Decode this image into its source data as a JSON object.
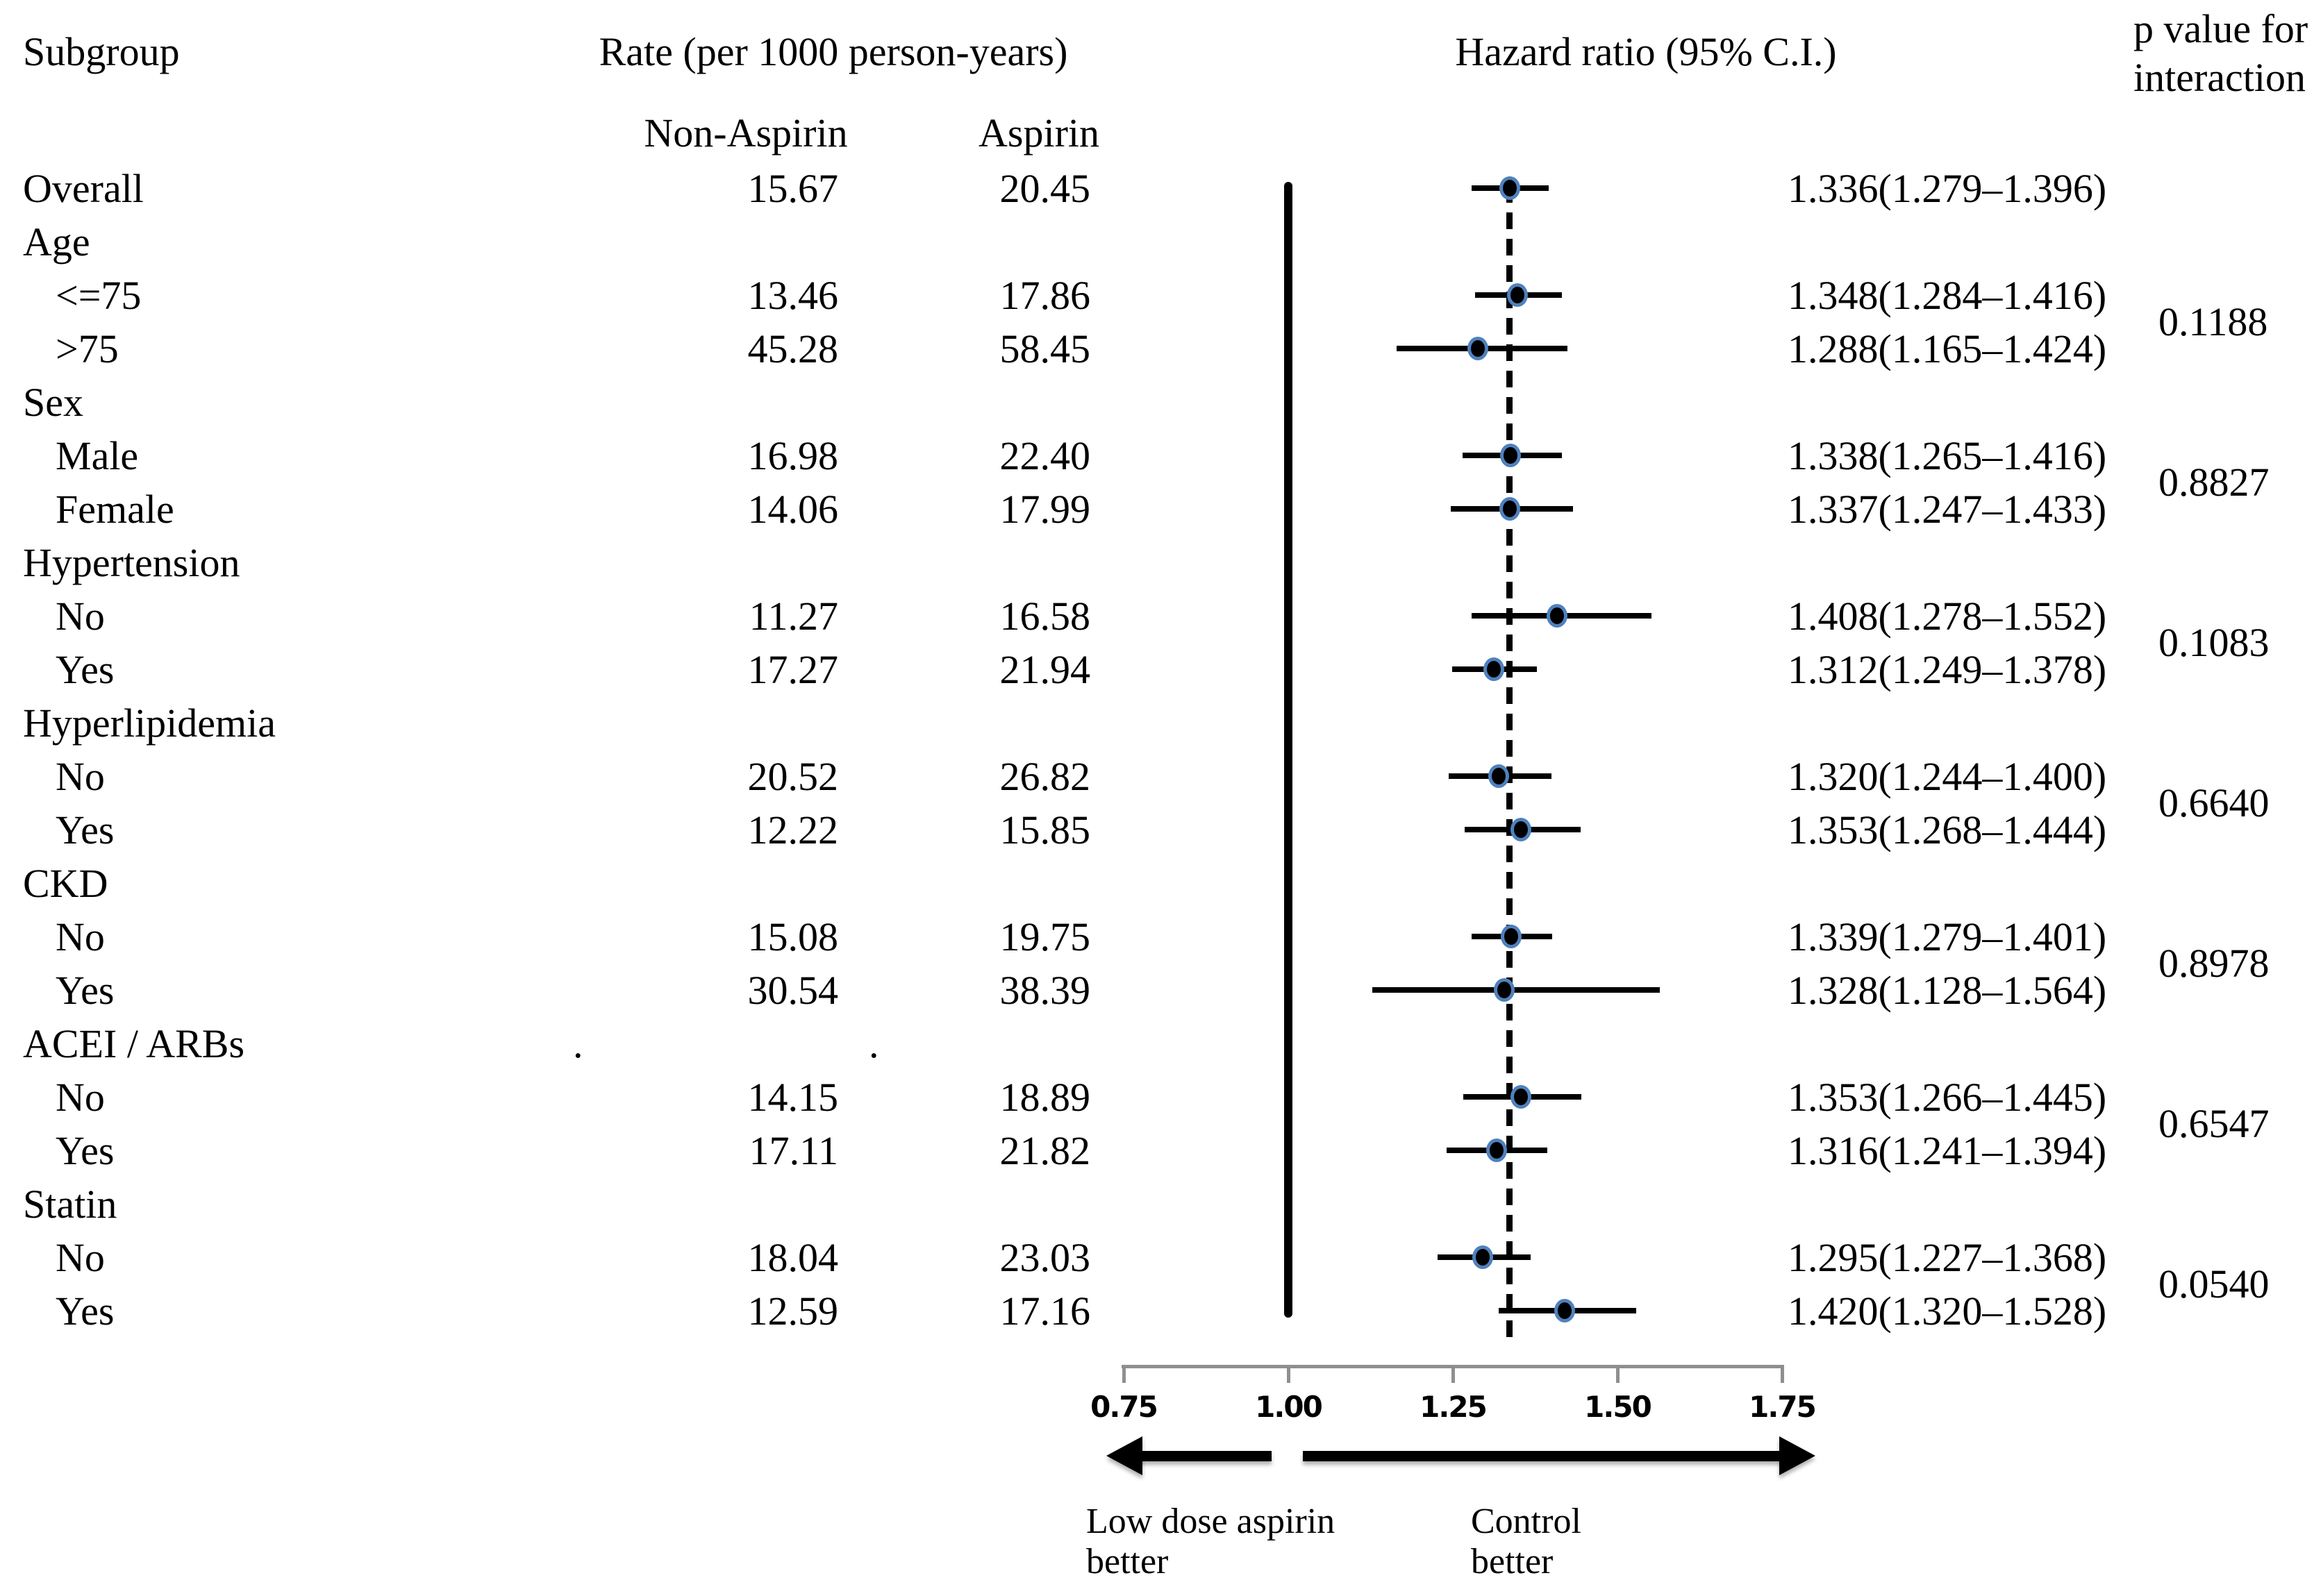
{
  "columns": {
    "subgroup": "Subgroup",
    "rate": "Rate (per 1000 person-years)",
    "non_aspirin": "Non-Aspirin",
    "aspirin": "Aspirin",
    "hazard_ratio": "Hazard ratio (95% C.I.)",
    "p_value_line1": "p value for",
    "p_value_line2": "interaction"
  },
  "chart_data": {
    "type": "forest",
    "x_axis": {
      "range": [
        0.75,
        1.75
      ],
      "ticks": [
        0.75,
        1.0,
        1.25,
        1.5,
        1.75
      ],
      "tick_labels": [
        "0.75",
        "1.00",
        "1.25",
        "1.50",
        "1.75"
      ]
    },
    "reference_line": 1.0,
    "overall_dashed_line": 1.336,
    "marker_color": "#4f81bd",
    "axis_color": "#8f8f8f",
    "direction_labels": {
      "left": [
        "Low dose aspirin",
        "better"
      ],
      "right": [
        "Control",
        "better"
      ]
    },
    "rows": [
      {
        "kind": "overall",
        "label": "Overall",
        "non_aspirin": "15.67",
        "aspirin": "20.45",
        "hr": 1.336,
        "lo": 1.279,
        "hi": 1.396,
        "hr_text": "1.336(1.279–1.396)"
      },
      {
        "kind": "group",
        "label": "Age"
      },
      {
        "kind": "item",
        "label": "<=75",
        "non_aspirin": "13.46",
        "aspirin": "17.86",
        "hr": 1.348,
        "lo": 1.284,
        "hi": 1.416,
        "hr_text": "1.348(1.284–1.416)"
      },
      {
        "kind": "item",
        "label": ">75",
        "non_aspirin": "45.28",
        "aspirin": "58.45",
        "hr": 1.288,
        "lo": 1.165,
        "hi": 1.424,
        "hr_text": "1.288(1.165–1.424)"
      },
      {
        "kind": "group",
        "label": "Sex"
      },
      {
        "kind": "item",
        "label": "Male",
        "non_aspirin": "16.98",
        "aspirin": "22.40",
        "hr": 1.338,
        "lo": 1.265,
        "hi": 1.416,
        "hr_text": "1.338(1.265–1.416)"
      },
      {
        "kind": "item",
        "label": "Female",
        "non_aspirin": "14.06",
        "aspirin": "17.99",
        "hr": 1.337,
        "lo": 1.247,
        "hi": 1.433,
        "hr_text": "1.337(1.247–1.433)"
      },
      {
        "kind": "group",
        "label": "Hypertension"
      },
      {
        "kind": "item",
        "label": "No",
        "non_aspirin": "11.27",
        "aspirin": "16.58",
        "hr": 1.408,
        "lo": 1.278,
        "hi": 1.552,
        "hr_text": "1.408(1.278–1.552)"
      },
      {
        "kind": "item",
        "label": "Yes",
        "non_aspirin": "17.27",
        "aspirin": "21.94",
        "hr": 1.312,
        "lo": 1.249,
        "hi": 1.378,
        "hr_text": "1.312(1.249–1.378)"
      },
      {
        "kind": "group",
        "label": "Hyperlipidemia"
      },
      {
        "kind": "item",
        "label": "No",
        "non_aspirin": "20.52",
        "aspirin": "26.82",
        "hr": 1.32,
        "lo": 1.244,
        "hi": 1.4,
        "hr_text": "1.320(1.244–1.400)"
      },
      {
        "kind": "item",
        "label": "Yes",
        "non_aspirin": "12.22",
        "aspirin": "15.85",
        "hr": 1.353,
        "lo": 1.268,
        "hi": 1.444,
        "hr_text": "1.353(1.268–1.444)"
      },
      {
        "kind": "group",
        "label": "CKD"
      },
      {
        "kind": "item",
        "label": "No",
        "non_aspirin": "15.08",
        "aspirin": "19.75",
        "hr": 1.339,
        "lo": 1.279,
        "hi": 1.401,
        "hr_text": "1.339(1.279–1.401)"
      },
      {
        "kind": "item",
        "label": "Yes",
        "non_aspirin": "30.54",
        "aspirin": "38.39",
        "hr": 1.328,
        "lo": 1.128,
        "hi": 1.564,
        "hr_text": "1.328(1.128–1.564)"
      },
      {
        "kind": "group",
        "label": "ACEI / ARBs",
        "stray_dots": [
          825,
          1251
        ],
        "stray_glyph": "."
      },
      {
        "kind": "item",
        "label": "No",
        "non_aspirin": "14.15",
        "aspirin": "18.89",
        "hr": 1.353,
        "lo": 1.266,
        "hi": 1.445,
        "hr_text": "1.353(1.266–1.445)"
      },
      {
        "kind": "item",
        "label": "Yes",
        "non_aspirin": "17.11",
        "aspirin": "21.82",
        "hr": 1.316,
        "lo": 1.241,
        "hi": 1.394,
        "hr_text": "1.316(1.241–1.394)"
      },
      {
        "kind": "group",
        "label": "Statin"
      },
      {
        "kind": "item",
        "label": "No",
        "non_aspirin": "18.04",
        "aspirin": "23.03",
        "hr": 1.295,
        "lo": 1.227,
        "hi": 1.368,
        "hr_text": "1.295(1.227–1.368)"
      },
      {
        "kind": "item",
        "label": "Yes",
        "non_aspirin": "12.59",
        "aspirin": "17.16",
        "hr": 1.42,
        "lo": 1.32,
        "hi": 1.528,
        "hr_text": "1.420(1.320–1.528)"
      }
    ],
    "p_values": [
      {
        "label": "0.1188",
        "between": [
          2,
          3
        ]
      },
      {
        "label": "0.8827",
        "between": [
          5,
          6
        ]
      },
      {
        "label": "0.1083",
        "between": [
          8,
          9
        ]
      },
      {
        "label": "0.6640",
        "between": [
          11,
          12
        ]
      },
      {
        "label": "0.8978",
        "between": [
          14,
          15
        ]
      },
      {
        "label": "0.6547",
        "between": [
          17,
          18
        ]
      },
      {
        "label": "0.0540",
        "between": [
          20,
          21
        ]
      }
    ]
  }
}
